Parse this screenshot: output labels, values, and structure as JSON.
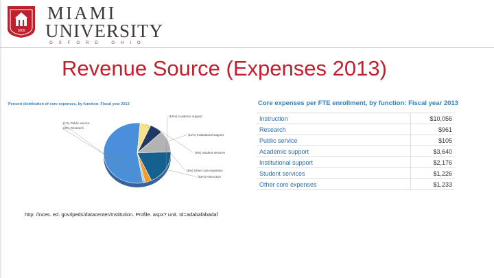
{
  "header": {
    "wordmark_line1": "MIAMI",
    "wordmark_line2": "UNIVERSITY",
    "wordmark_line3": "OXFORD OHIO",
    "seal_year": "1809"
  },
  "slide": {
    "title": "Revenue Source (Expenses 2013)",
    "source": "http: //nces. ed. gov/ipeds/datacenter/Institution. Profile. aspx? unit. Id=adabafabadaf"
  },
  "colors": {
    "accent": "#c0202e",
    "link_blue": "#2f7fbf"
  },
  "chart_data": [
    {
      "type": "pie",
      "title": "Percent distribution of core expenses, by function: Fiscal year 2013",
      "slices": [
        {
          "label": "(52%) Instruction",
          "value": 52,
          "color": "#4a8fd9"
        },
        {
          "label": "(5%) Other core expenses",
          "value": 5,
          "color": "#f5e28a"
        },
        {
          "label": "(6%) Student services",
          "value": 6,
          "color": "#1f3a66"
        },
        {
          "label": "(11%) Institutional support",
          "value": 11,
          "color": "#b3b3b3"
        },
        {
          "label": "(18%) Academic support",
          "value": 18,
          "color": "#14618f"
        },
        {
          "label": "(3%) Research",
          "value": 3,
          "color": "#f39c2a"
        },
        {
          "label": "(1%) Public service",
          "value": 1,
          "color": "#9ec9ea"
        }
      ]
    },
    {
      "type": "table",
      "title": "Core expenses per FTE enrollment, by function: Fiscal year 2013",
      "rows": [
        {
          "function": "Instruction",
          "amount": "$10,056"
        },
        {
          "function": "Research",
          "amount": "$961"
        },
        {
          "function": "Public service",
          "amount": "$105"
        },
        {
          "function": "Academic support",
          "amount": "$3,640"
        },
        {
          "function": "Institutional support",
          "amount": "$2,176"
        },
        {
          "function": "Student services",
          "amount": "$1,226"
        },
        {
          "function": "Other core expenses",
          "amount": "$1,233"
        }
      ]
    }
  ]
}
